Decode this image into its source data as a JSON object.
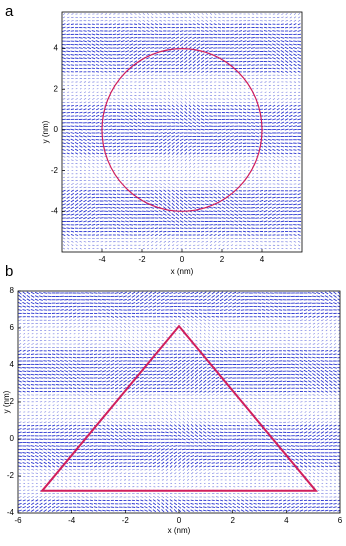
{
  "chart_data": [
    {
      "type": "field",
      "label": "a",
      "xlabel": "x (nm)",
      "ylabel": "y (nm)",
      "xlim": [
        -6,
        6
      ],
      "ylim": [
        -6,
        5.8
      ],
      "xticks": [
        -4,
        -2,
        0,
        2,
        4
      ],
      "yticks": [
        -4,
        -2,
        0,
        2,
        4
      ],
      "field_color": "#2a35d0",
      "shape_color": "#d01f5c",
      "shape": {
        "kind": "circle",
        "cx": 0,
        "cy": 0,
        "r": 4
      }
    },
    {
      "type": "field",
      "label": "b",
      "xlabel": "x (nm)",
      "ylabel": "y (nm)",
      "xlim": [
        -6,
        6
      ],
      "ylim": [
        -4,
        8
      ],
      "xticks": [
        -6,
        -4,
        -2,
        0,
        2,
        4,
        6
      ],
      "yticks": [
        -4,
        -2,
        0,
        2,
        4,
        6,
        8
      ],
      "field_color": "#2a35d0",
      "shape_color": "#d01f5c",
      "shape": {
        "kind": "polygon",
        "x": [
          -5.1,
          0,
          5.1
        ],
        "y": [
          -2.8,
          6.1,
          -2.8
        ]
      }
    }
  ]
}
